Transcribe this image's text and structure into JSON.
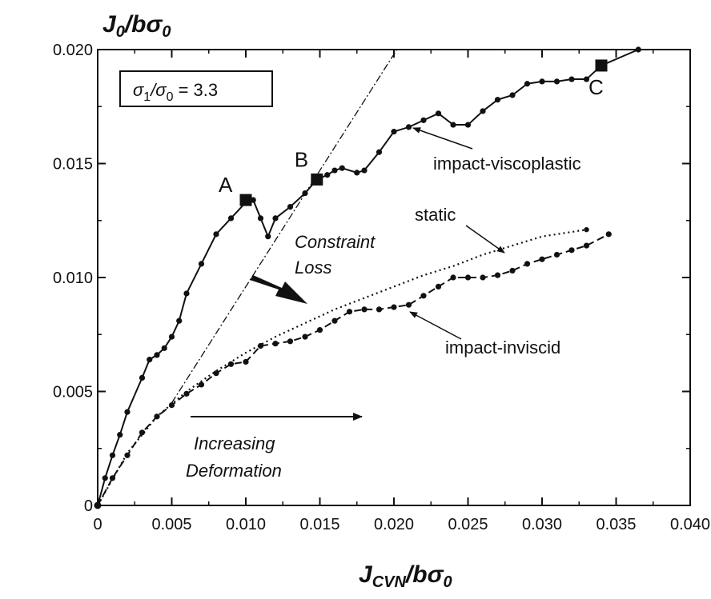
{
  "chart_data": {
    "type": "line",
    "title": "",
    "xlabel": {
      "main": "J",
      "sub": "CVN",
      "tail": "/bσ",
      "tail_sub": "0"
    },
    "ylabel": {
      "main": "J",
      "sub": "0",
      "tail": "/bσ",
      "tail_sub": "0"
    },
    "xlim": [
      0,
      0.04
    ],
    "ylim": [
      0,
      0.02
    ],
    "x_ticks": [
      0,
      0.005,
      0.01,
      0.015,
      0.02,
      0.025,
      0.03,
      0.035,
      0.04
    ],
    "x_tick_labels": [
      "0",
      "0.005",
      "0.010",
      "0.015",
      "0.020",
      "0.025",
      "0.030",
      "0.035",
      "0.040"
    ],
    "y_ticks": [
      0,
      0.005,
      0.01,
      0.015,
      0.02
    ],
    "y_tick_labels": [
      "0",
      "0.005",
      "0.010",
      "0.015",
      "0.020"
    ],
    "grid": false,
    "legend_box": {
      "main": "σ",
      "sub1": "1",
      "mid": "/σ",
      "sub2": "0",
      "tail": " = 3.3"
    },
    "series": [
      {
        "name": "impact-viscoplastic",
        "style": "solid-dots",
        "x": [
          0,
          0.0005,
          0.001,
          0.0015,
          0.002,
          0.003,
          0.0035,
          0.004,
          0.0045,
          0.005,
          0.0055,
          0.006,
          0.007,
          0.008,
          0.009,
          0.01,
          0.0105,
          0.011,
          0.0115,
          0.012,
          0.013,
          0.014,
          0.0148,
          0.0155,
          0.016,
          0.0165,
          0.0175,
          0.018,
          0.019,
          0.02,
          0.021,
          0.022,
          0.023,
          0.024,
          0.025,
          0.026,
          0.027,
          0.028,
          0.029,
          0.03,
          0.031,
          0.032,
          0.033,
          0.034,
          0.0365
        ],
        "y": [
          0,
          0.0012,
          0.0022,
          0.0031,
          0.0041,
          0.0056,
          0.0064,
          0.0066,
          0.0069,
          0.0074,
          0.0081,
          0.0093,
          0.0106,
          0.0119,
          0.0126,
          0.0133,
          0.0134,
          0.0126,
          0.0118,
          0.0126,
          0.0131,
          0.0137,
          0.0143,
          0.0145,
          0.0147,
          0.0148,
          0.0146,
          0.0147,
          0.0155,
          0.0164,
          0.0166,
          0.0169,
          0.0172,
          0.0167,
          0.0167,
          0.0173,
          0.0178,
          0.018,
          0.0185,
          0.0186,
          0.0186,
          0.0187,
          0.0187,
          0.0193,
          0.02
        ]
      },
      {
        "name": "static",
        "style": "dotted",
        "x": [
          0,
          0.002,
          0.004,
          0.006,
          0.008,
          0.01,
          0.012,
          0.014,
          0.016,
          0.018,
          0.02,
          0.022,
          0.024,
          0.026,
          0.028,
          0.03,
          0.033
        ],
        "y": [
          0,
          0.0023,
          0.0039,
          0.005,
          0.0059,
          0.0067,
          0.0074,
          0.008,
          0.0086,
          0.0091,
          0.0096,
          0.0101,
          0.0105,
          0.011,
          0.0114,
          0.0118,
          0.0121
        ]
      },
      {
        "name": "impact-inviscid",
        "style": "dashed-dots",
        "x": [
          0,
          0.001,
          0.002,
          0.003,
          0.004,
          0.005,
          0.006,
          0.007,
          0.008,
          0.009,
          0.01,
          0.011,
          0.012,
          0.013,
          0.014,
          0.015,
          0.016,
          0.017,
          0.018,
          0.019,
          0.02,
          0.021,
          0.022,
          0.023,
          0.024,
          0.025,
          0.026,
          0.027,
          0.028,
          0.029,
          0.03,
          0.031,
          0.032,
          0.033,
          0.0345
        ],
        "y": [
          0,
          0.0012,
          0.0022,
          0.0032,
          0.0039,
          0.0044,
          0.0049,
          0.0053,
          0.0058,
          0.0062,
          0.0063,
          0.007,
          0.0071,
          0.0072,
          0.0074,
          0.0077,
          0.0081,
          0.0085,
          0.0086,
          0.0086,
          0.0087,
          0.0088,
          0.0092,
          0.0096,
          0.01,
          0.01,
          0.01,
          0.0101,
          0.0103,
          0.0106,
          0.0108,
          0.011,
          0.0112,
          0.0114,
          0.0119
        ]
      }
    ],
    "reference_line": {
      "style": "dash-dot",
      "x": [
        0.005,
        0.0202
      ],
      "y": [
        0.0045,
        0.02
      ]
    },
    "markers": [
      {
        "label": "A",
        "x": 0.01,
        "y": 0.0134
      },
      {
        "label": "B",
        "x": 0.0148,
        "y": 0.0143
      },
      {
        "label": "C",
        "x": 0.034,
        "y": 0.0193
      }
    ],
    "annotations": {
      "constraint_loss": [
        "Constraint",
        "Loss"
      ],
      "increasing_deformation": [
        "Increasing",
        "Deformation"
      ],
      "impact_viscoplastic": "impact-viscoplastic",
      "static": "static",
      "impact_inviscid": "impact-inviscid"
    }
  }
}
